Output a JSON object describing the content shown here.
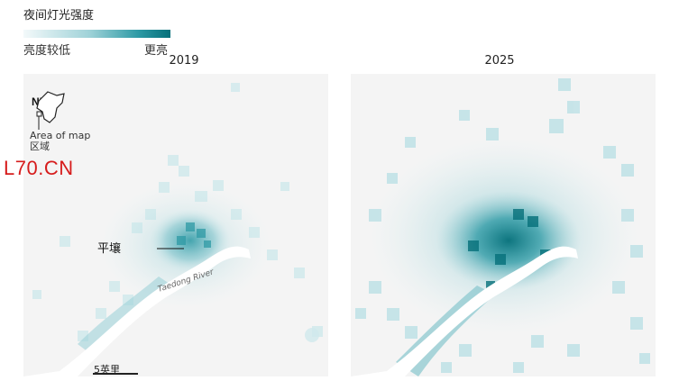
{
  "legend": {
    "title": "夜间灯光强度",
    "low_label": "亮度较低",
    "high_label": "更亮",
    "colors": [
      "#f3f9fa",
      "#9fd2d8",
      "#2e9aa5",
      "#06707a"
    ]
  },
  "panels": [
    {
      "year": "2019"
    },
    {
      "year": "2025"
    }
  ],
  "map": {
    "country_inset_label": "NK.",
    "area_of_map_label": "Area of map",
    "area_of_map_label_zh": "区域",
    "city_label": "平壤",
    "river_label": "Taedong River",
    "scale_label": "5英里",
    "watermark": "L70.CN",
    "water_color": "#ffffff",
    "land_color": "#f4f4f4"
  }
}
